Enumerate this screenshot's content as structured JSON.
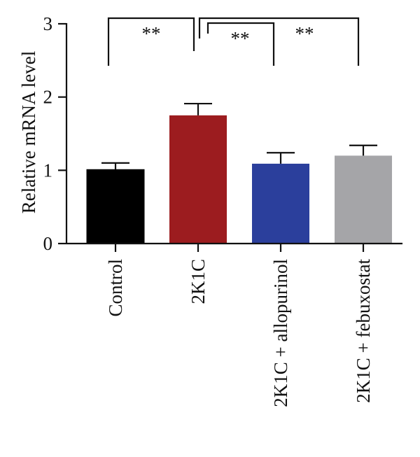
{
  "chart_data": {
    "type": "bar",
    "title": "",
    "xlabel": "",
    "ylabel": "Relative mRNA level",
    "ylim": [
      0,
      3
    ],
    "yticks": [
      0,
      1,
      2,
      3
    ],
    "grid": false,
    "categories": [
      "Control",
      "2K1C",
      "2K1C + allopurinol",
      "2K1C + febuxostat"
    ],
    "values": [
      1.01,
      1.75,
      1.09,
      1.2
    ],
    "errors": [
      0.09,
      0.16,
      0.15,
      0.14
    ],
    "colors": [
      "#000000",
      "#9c1c1f",
      "#2b3f9c",
      "#a5a5a8"
    ],
    "significance": [
      {
        "from": 0,
        "to": 1,
        "label": "**"
      },
      {
        "from": 1,
        "to": 2,
        "label": "**"
      },
      {
        "from": 1,
        "to": 3,
        "label": "**"
      }
    ]
  }
}
